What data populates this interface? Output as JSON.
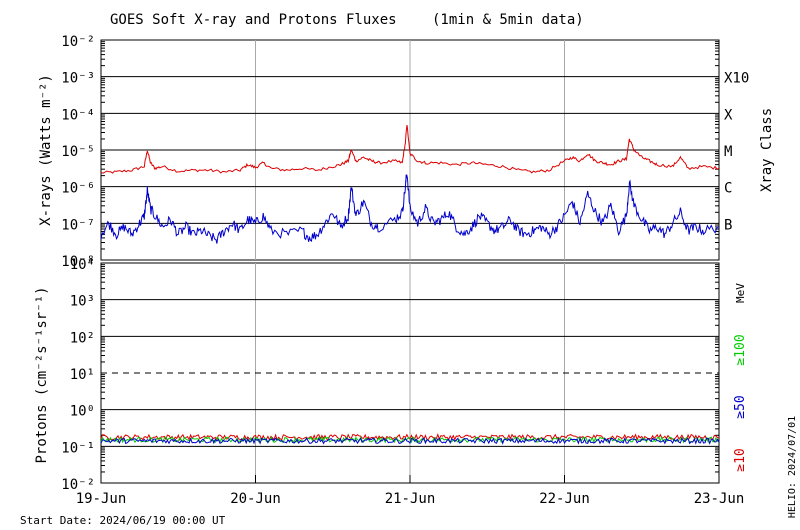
{
  "chart_data": {
    "type": "line",
    "title": "GOES Soft X-ray and Protons Fluxes",
    "subtitle": "(1min & 5min data)",
    "footer": "Start Date: 2024/06/19 00:00 UT",
    "watermark": "HELIO: 2024/07/01",
    "x_ticks": [
      {
        "label": "19-Jun",
        "t": 0
      },
      {
        "label": "20-Jun",
        "t": 1
      },
      {
        "label": "21-Jun",
        "t": 2
      },
      {
        "label": "22-Jun",
        "t": 3
      },
      {
        "label": "23-Jun",
        "t": 4
      }
    ],
    "xlim": [
      0,
      4
    ],
    "xray_panel": {
      "ylabel": "X-rays (Watts m⁻²)",
      "ylim_exp": [
        -8,
        -2
      ],
      "y_ticks": [
        {
          "label": "10⁻²",
          "exp": -2
        },
        {
          "label": "10⁻³",
          "exp": -3
        },
        {
          "label": "10⁻⁴",
          "exp": -4
        },
        {
          "label": "10⁻⁵",
          "exp": -5
        },
        {
          "label": "10⁻⁶",
          "exp": -6
        },
        {
          "label": "10⁻⁷",
          "exp": -7
        },
        {
          "label": "10⁻⁸",
          "exp": -8
        }
      ],
      "class_axis_label": "Xray Class",
      "classes": [
        {
          "label": "X10",
          "exp": -3
        },
        {
          "label": "X",
          "exp": -4
        },
        {
          "label": "M",
          "exp": -5
        },
        {
          "label": "C",
          "exp": -6
        },
        {
          "label": "B",
          "exp": -7
        }
      ],
      "series": [
        {
          "color": "#dd0000",
          "points": [
            [
              0.0,
              -5.62
            ],
            [
              0.1,
              -5.6
            ],
            [
              0.2,
              -5.55
            ],
            [
              0.28,
              -5.45
            ],
            [
              0.3,
              -5.0
            ],
            [
              0.32,
              -5.35
            ],
            [
              0.35,
              -5.5
            ],
            [
              0.4,
              -5.45
            ],
            [
              0.5,
              -5.58
            ],
            [
              0.6,
              -5.55
            ],
            [
              0.7,
              -5.55
            ],
            [
              0.8,
              -5.6
            ],
            [
              0.9,
              -5.55
            ],
            [
              0.95,
              -5.4
            ],
            [
              1.0,
              -5.48
            ],
            [
              1.05,
              -5.35
            ],
            [
              1.1,
              -5.5
            ],
            [
              1.2,
              -5.55
            ],
            [
              1.3,
              -5.5
            ],
            [
              1.4,
              -5.55
            ],
            [
              1.5,
              -5.45
            ],
            [
              1.55,
              -5.4
            ],
            [
              1.6,
              -5.3
            ],
            [
              1.62,
              -5.0
            ],
            [
              1.65,
              -5.3
            ],
            [
              1.7,
              -5.2
            ],
            [
              1.75,
              -5.3
            ],
            [
              1.8,
              -5.35
            ],
            [
              1.9,
              -5.3
            ],
            [
              1.95,
              -5.35
            ],
            [
              1.97,
              -4.8
            ],
            [
              1.98,
              -4.3
            ],
            [
              2.0,
              -5.1
            ],
            [
              2.05,
              -5.3
            ],
            [
              2.1,
              -5.35
            ],
            [
              2.2,
              -5.35
            ],
            [
              2.3,
              -5.4
            ],
            [
              2.4,
              -5.35
            ],
            [
              2.5,
              -5.4
            ],
            [
              2.6,
              -5.45
            ],
            [
              2.7,
              -5.55
            ],
            [
              2.8,
              -5.6
            ],
            [
              2.9,
              -5.55
            ],
            [
              3.0,
              -5.3
            ],
            [
              3.05,
              -5.2
            ],
            [
              3.1,
              -5.3
            ],
            [
              3.15,
              -5.1
            ],
            [
              3.2,
              -5.3
            ],
            [
              3.25,
              -5.35
            ],
            [
              3.3,
              -5.4
            ],
            [
              3.35,
              -5.3
            ],
            [
              3.4,
              -5.25
            ],
            [
              3.42,
              -4.7
            ],
            [
              3.45,
              -5.0
            ],
            [
              3.5,
              -5.2
            ],
            [
              3.55,
              -5.3
            ],
            [
              3.6,
              -5.4
            ],
            [
              3.7,
              -5.45
            ],
            [
              3.75,
              -5.2
            ],
            [
              3.8,
              -5.5
            ],
            [
              3.9,
              -5.45
            ],
            [
              4.0,
              -5.5
            ]
          ]
        },
        {
          "color": "#0000cc",
          "points": [
            [
              0.0,
              -7.3
            ],
            [
              0.05,
              -7.0
            ],
            [
              0.1,
              -7.3
            ],
            [
              0.15,
              -7.1
            ],
            [
              0.2,
              -7.3
            ],
            [
              0.25,
              -7.0
            ],
            [
              0.28,
              -6.8
            ],
            [
              0.3,
              -6.1
            ],
            [
              0.32,
              -6.6
            ],
            [
              0.35,
              -6.8
            ],
            [
              0.4,
              -7.1
            ],
            [
              0.45,
              -6.9
            ],
            [
              0.5,
              -7.3
            ],
            [
              0.55,
              -7.1
            ],
            [
              0.6,
              -7.3
            ],
            [
              0.65,
              -7.2
            ],
            [
              0.7,
              -7.35
            ],
            [
              0.75,
              -7.45
            ],
            [
              0.8,
              -7.2
            ],
            [
              0.85,
              -7.0
            ],
            [
              0.9,
              -7.2
            ],
            [
              0.95,
              -6.9
            ],
            [
              1.0,
              -7.0
            ],
            [
              1.05,
              -6.8
            ],
            [
              1.1,
              -7.2
            ],
            [
              1.2,
              -7.3
            ],
            [
              1.3,
              -7.2
            ],
            [
              1.35,
              -7.4
            ],
            [
              1.4,
              -7.3
            ],
            [
              1.45,
              -7.0
            ],
            [
              1.5,
              -6.7
            ],
            [
              1.55,
              -7.1
            ],
            [
              1.6,
              -6.8
            ],
            [
              1.62,
              -6.0
            ],
            [
              1.65,
              -6.8
            ],
            [
              1.7,
              -6.4
            ],
            [
              1.75,
              -7.0
            ],
            [
              1.8,
              -7.1
            ],
            [
              1.9,
              -6.9
            ],
            [
              1.95,
              -6.7
            ],
            [
              1.97,
              -6.0
            ],
            [
              1.98,
              -5.6
            ],
            [
              2.0,
              -6.6
            ],
            [
              2.05,
              -7.0
            ],
            [
              2.1,
              -6.6
            ],
            [
              2.15,
              -7.0
            ],
            [
              2.2,
              -6.9
            ],
            [
              2.25,
              -6.7
            ],
            [
              2.3,
              -7.1
            ],
            [
              2.35,
              -7.3
            ],
            [
              2.4,
              -7.1
            ],
            [
              2.45,
              -6.8
            ],
            [
              2.5,
              -7.0
            ],
            [
              2.55,
              -7.2
            ],
            [
              2.6,
              -7.1
            ],
            [
              2.65,
              -6.9
            ],
            [
              2.7,
              -7.2
            ],
            [
              2.75,
              -7.3
            ],
            [
              2.8,
              -7.2
            ],
            [
              2.85,
              -7.1
            ],
            [
              2.9,
              -7.3
            ],
            [
              2.95,
              -7.1
            ],
            [
              3.0,
              -6.8
            ],
            [
              3.05,
              -6.4
            ],
            [
              3.1,
              -7.0
            ],
            [
              3.15,
              -6.2
            ],
            [
              3.2,
              -6.7
            ],
            [
              3.25,
              -7.0
            ],
            [
              3.3,
              -6.5
            ],
            [
              3.35,
              -7.2
            ],
            [
              3.4,
              -6.8
            ],
            [
              3.42,
              -5.9
            ],
            [
              3.45,
              -6.5
            ],
            [
              3.5,
              -6.9
            ],
            [
              3.55,
              -7.2
            ],
            [
              3.6,
              -7.1
            ],
            [
              3.65,
              -7.3
            ],
            [
              3.7,
              -7.0
            ],
            [
              3.75,
              -6.7
            ],
            [
              3.8,
              -7.2
            ],
            [
              3.85,
              -7.1
            ],
            [
              3.9,
              -7.2
            ],
            [
              4.0,
              -7.1
            ]
          ]
        }
      ]
    },
    "proton_panel": {
      "ylabel": "Protons (cm⁻²s⁻¹sr⁻¹)",
      "ylim_exp": [
        -2,
        4
      ],
      "y_ticks": [
        {
          "label": "10⁴",
          "exp": 4
        },
        {
          "label": "10³",
          "exp": 3
        },
        {
          "label": "10²",
          "exp": 2
        },
        {
          "label": "10¹",
          "exp": 1
        },
        {
          "label": "10⁰",
          "exp": 0
        },
        {
          "label": "10⁻¹",
          "exp": -1
        },
        {
          "label": "10⁻²",
          "exp": -2
        }
      ],
      "threshold_exp": 1,
      "unit_label": "MeV",
      "energy_labels": [
        {
          "label": "≥100",
          "color": "#00cc00"
        },
        {
          "label": "≥50",
          "color": "#0000cc"
        },
        {
          "label": "≥10",
          "color": "#dd0000"
        }
      ],
      "series": [
        {
          "color": "#dd0000",
          "mean_exp": -0.75
        },
        {
          "color": "#00cc00",
          "mean_exp": -0.82
        },
        {
          "color": "#0000cc",
          "mean_exp": -0.85
        }
      ]
    }
  }
}
